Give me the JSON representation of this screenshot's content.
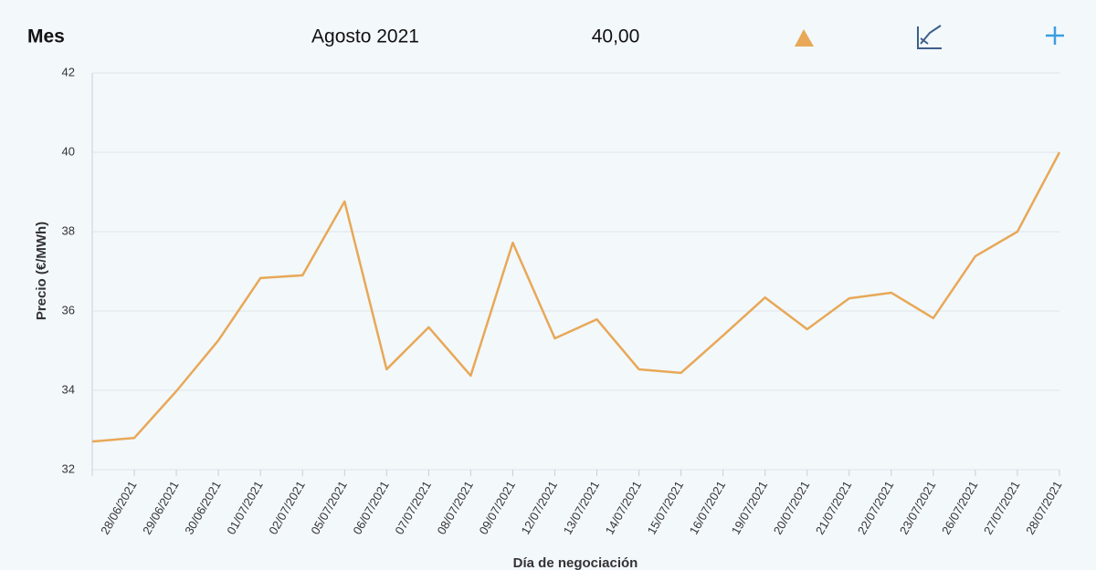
{
  "header": {
    "label": "Mes",
    "period": "Agosto 2021",
    "price": "40,00"
  },
  "chart_data": {
    "type": "line",
    "y_label": "Precio (€/MWh)",
    "x_label": "Día de negociación",
    "categories": [
      null,
      "28/06/2021",
      "29/06/2021",
      "30/06/2021",
      "01/07/2021",
      "02/07/2021",
      "05/07/2021",
      "06/07/2021",
      "07/07/2021",
      "08/07/2021",
      "09/07/2021",
      "12/07/2021",
      "13/07/2021",
      "14/07/2021",
      "15/07/2021",
      "16/07/2021",
      "19/07/2021",
      "20/07/2021",
      "21/07/2021",
      "22/07/2021",
      "23/07/2021",
      "26/07/2021",
      "27/07/2021",
      "28/07/2021"
    ],
    "series": [
      {
        "color": "#e8a857",
        "values": [
          32.71,
          32.8,
          33.98,
          35.26,
          36.83,
          36.9,
          38.76,
          34.53,
          35.59,
          34.37,
          37.72,
          35.31,
          35.79,
          34.53,
          34.44,
          35.38,
          36.34,
          35.54,
          36.32,
          36.46,
          35.82,
          37.38,
          38.0,
          40
        ]
      }
    ],
    "ylim": [
      32,
      42
    ],
    "yticks": [
      32,
      34,
      36,
      38,
      40,
      42
    ],
    "grid": true
  }
}
